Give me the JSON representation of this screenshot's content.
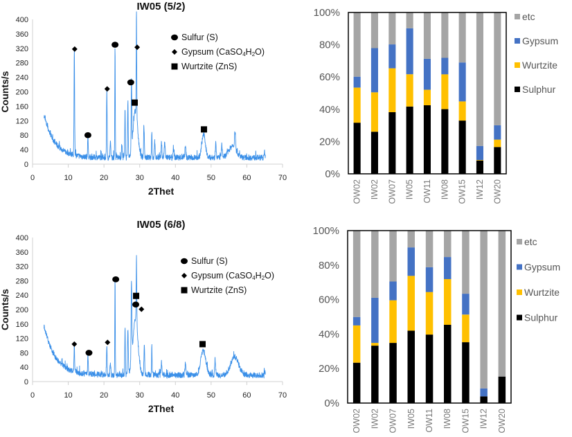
{
  "chart_data": [
    {
      "id": "xrd-top",
      "type": "line",
      "title": "IW05 (5/2)",
      "xlabel": "2Thet",
      "ylabel": "Counts/s",
      "xlim": [
        0,
        70
      ],
      "ylim": [
        0,
        400
      ],
      "xticks": [
        "0",
        "10",
        "20",
        "30",
        "40",
        "50",
        "60",
        "70"
      ],
      "yticks": [
        "0",
        "40",
        "80",
        "120",
        "160",
        "200",
        "240",
        "280",
        "320",
        "360",
        "400"
      ],
      "x_range": [
        3.2,
        65.2
      ],
      "background": {
        "start": 135,
        "decay": 3.0,
        "floor": 18
      },
      "color": "#3a8fe8",
      "peaks": [
        {
          "x": 11.7,
          "y": 305,
          "w": 0.12
        },
        {
          "x": 15.5,
          "y": 70,
          "w": 0.12
        },
        {
          "x": 20.8,
          "y": 200,
          "w": 0.12
        },
        {
          "x": 21.8,
          "y": 50,
          "w": 0.15
        },
        {
          "x": 23.1,
          "y": 320,
          "w": 0.1
        },
        {
          "x": 25.0,
          "y": 45,
          "w": 0.15
        },
        {
          "x": 25.9,
          "y": 140,
          "w": 0.12
        },
        {
          "x": 26.7,
          "y": 165,
          "w": 0.12
        },
        {
          "x": 27.7,
          "y": 210,
          "w": 0.12
        },
        {
          "x": 28.8,
          "y": 140,
          "w": 0.9
        },
        {
          "x": 29.1,
          "y": 305,
          "w": 0.1
        },
        {
          "x": 31.2,
          "y": 95,
          "w": 0.15
        },
        {
          "x": 33.4,
          "y": 80,
          "w": 0.12
        },
        {
          "x": 34.2,
          "y": 55,
          "w": 0.15
        },
        {
          "x": 36.1,
          "y": 55,
          "w": 0.15
        },
        {
          "x": 37.0,
          "y": 50,
          "w": 0.2
        },
        {
          "x": 39.5,
          "y": 35,
          "w": 0.2
        },
        {
          "x": 42.8,
          "y": 40,
          "w": 0.2
        },
        {
          "x": 47.9,
          "y": 75,
          "w": 0.7
        },
        {
          "x": 51.3,
          "y": 60,
          "w": 0.15
        },
        {
          "x": 53.0,
          "y": 45,
          "w": 0.2
        },
        {
          "x": 56.0,
          "y": 42,
          "w": 1.5
        },
        {
          "x": 56.7,
          "y": 58,
          "w": 0.2
        },
        {
          "x": 65.0,
          "y": 30,
          "w": 0.1
        }
      ],
      "markers": [
        {
          "symbol": "diamond",
          "x": 11.8,
          "y": 318
        },
        {
          "symbol": "circle",
          "x": 15.5,
          "y": 80
        },
        {
          "symbol": "diamond",
          "x": 20.9,
          "y": 208
        },
        {
          "symbol": "circle",
          "x": 23.1,
          "y": 330
        },
        {
          "symbol": "circle",
          "x": 27.5,
          "y": 226
        },
        {
          "symbol": "square",
          "x": 28.6,
          "y": 170
        },
        {
          "symbol": "diamond",
          "x": 29.3,
          "y": 323
        },
        {
          "symbol": "square",
          "x": 48.0,
          "y": 96
        }
      ],
      "legend": {
        "placement": "top-right",
        "entries": [
          {
            "symbol": "circle",
            "label": "Sulfur (S)"
          },
          {
            "symbol": "diamond",
            "label_pre": "Gypsum (CaSO",
            "sub1": "4",
            "label_mid": "H",
            "sub2": "2",
            "label_post": "O)"
          },
          {
            "symbol": "square",
            "label": "Wurtzite (ZnS)"
          }
        ]
      }
    },
    {
      "id": "bar-top",
      "type": "bar",
      "stacked": true,
      "normalized": true,
      "ylim": [
        0,
        100
      ],
      "yticks": [
        "0%",
        "20%",
        "40%",
        "60%",
        "80%",
        "100%"
      ],
      "categories": [
        "OW02",
        "IW02",
        "OW07",
        "IW05",
        "OW11",
        "IW08",
        "OW15",
        "IW12",
        "OW20"
      ],
      "series": [
        {
          "name": "Sulphur",
          "color": "#000000",
          "values": [
            31.7,
            26.1,
            38.2,
            41.7,
            42.5,
            40.1,
            33.0,
            8.3,
            16.6
          ]
        },
        {
          "name": "Wurtzite",
          "color": "#ffc000",
          "values": [
            21.7,
            24.4,
            27.2,
            20.0,
            9.6,
            21.6,
            11.9,
            0.3,
            4.6
          ]
        },
        {
          "name": "Gypsum",
          "color": "#4472c4",
          "values": [
            6.8,
            27.4,
            14.8,
            28.5,
            19.2,
            10.2,
            24.1,
            8.7,
            8.9
          ]
        },
        {
          "name": "etc",
          "color": "#a5a5a5",
          "values": [
            39.8,
            22.1,
            19.8,
            9.8,
            28.7,
            28.1,
            31.0,
            82.7,
            69.9
          ]
        }
      ],
      "legend": {
        "placement": "right",
        "order": [
          "etc",
          "Gypsum",
          "Wurtzite",
          "Sulphur"
        ]
      }
    },
    {
      "id": "xrd-bottom",
      "type": "line",
      "title": "IW05 (6/8)",
      "xlabel": "2Thet",
      "ylabel": "Counts/s",
      "xlim": [
        0,
        70
      ],
      "ylim": [
        0,
        400
      ],
      "xticks": [
        "0",
        "10",
        "20",
        "30",
        "40",
        "50",
        "60",
        "70"
      ],
      "yticks": [
        "0",
        "40",
        "80",
        "120",
        "160",
        "200",
        "240",
        "280",
        "320",
        "360",
        "400"
      ],
      "x_range": [
        3.2,
        65.2
      ],
      "background": {
        "start": 155,
        "decay": 3.2,
        "floor": 18
      },
      "color": "#3a8fe8",
      "peaks": [
        {
          "x": 11.7,
          "y": 80,
          "w": 0.12
        },
        {
          "x": 15.5,
          "y": 70,
          "w": 0.12
        },
        {
          "x": 20.8,
          "y": 95,
          "w": 0.12
        },
        {
          "x": 21.8,
          "y": 45,
          "w": 0.15
        },
        {
          "x": 23.1,
          "y": 275,
          "w": 0.1
        },
        {
          "x": 25.9,
          "y": 145,
          "w": 0.12
        },
        {
          "x": 26.7,
          "y": 140,
          "w": 0.15
        },
        {
          "x": 27.7,
          "y": 225,
          "w": 0.15
        },
        {
          "x": 28.8,
          "y": 165,
          "w": 1.0
        },
        {
          "x": 29.1,
          "y": 200,
          "w": 0.12
        },
        {
          "x": 31.3,
          "y": 90,
          "w": 0.15
        },
        {
          "x": 33.4,
          "y": 100,
          "w": 0.1
        },
        {
          "x": 36.1,
          "y": 45,
          "w": 0.15
        },
        {
          "x": 42.8,
          "y": 40,
          "w": 0.2
        },
        {
          "x": 47.8,
          "y": 80,
          "w": 1.0
        },
        {
          "x": 51.1,
          "y": 55,
          "w": 0.15
        },
        {
          "x": 56.6,
          "y": 60,
          "w": 1.6
        },
        {
          "x": 65.0,
          "y": 25,
          "w": 0.1
        }
      ],
      "markers": [
        {
          "symbol": "diamond",
          "x": 11.7,
          "y": 104
        },
        {
          "symbol": "circle",
          "x": 15.8,
          "y": 80
        },
        {
          "symbol": "diamond",
          "x": 21.0,
          "y": 109
        },
        {
          "symbol": "circle",
          "x": 23.3,
          "y": 284
        },
        {
          "symbol": "square",
          "x": 29.0,
          "y": 238
        },
        {
          "symbol": "circle",
          "x": 28.9,
          "y": 214
        },
        {
          "symbol": "diamond",
          "x": 30.5,
          "y": 201
        },
        {
          "symbol": "square",
          "x": 47.6,
          "y": 104
        }
      ],
      "legend": {
        "placement": "top-right",
        "entries": [
          {
            "symbol": "circle",
            "label": "Sulfur (S)"
          },
          {
            "symbol": "diamond",
            "label_pre": "Gypsum (CaSO",
            "sub1": "4",
            "label_mid": "H",
            "sub2": "2",
            "label_post": "O)"
          },
          {
            "symbol": "square",
            "label": "Wurtzite (ZnS)"
          }
        ]
      }
    },
    {
      "id": "bar-bottom",
      "type": "bar",
      "stacked": true,
      "normalized": true,
      "ylim": [
        0,
        100
      ],
      "yticks": [
        "0%",
        "20%",
        "40%",
        "60%",
        "80%",
        "100%"
      ],
      "categories": [
        "OW02",
        "IW02",
        "OW07",
        "IW05",
        "OW11",
        "IW08",
        "OW15",
        "IW12",
        "OW20"
      ],
      "series": [
        {
          "name": "Sulphur",
          "color": "#000000",
          "values": [
            23.4,
            33.3,
            34.9,
            42.0,
            39.7,
            45.4,
            35.3,
            3.9,
            15.4
          ]
        },
        {
          "name": "Wurtzite",
          "color": "#ffc000",
          "values": [
            21.6,
            1.6,
            24.7,
            31.8,
            24.7,
            26.5,
            16.0,
            0.0,
            0.0
          ]
        },
        {
          "name": "Gypsum",
          "color": "#4472c4",
          "values": [
            4.9,
            26.2,
            10.9,
            16.5,
            14.4,
            12.8,
            12.1,
            4.6,
            0.0
          ]
        },
        {
          "name": "etc",
          "color": "#a5a5a5",
          "values": [
            50.1,
            38.9,
            29.5,
            9.7,
            21.2,
            15.3,
            36.6,
            91.5,
            84.6
          ]
        }
      ],
      "legend": {
        "placement": "right",
        "order": [
          "etc",
          "Gypsum",
          "Wurtzite",
          "Sulphur"
        ]
      }
    }
  ]
}
